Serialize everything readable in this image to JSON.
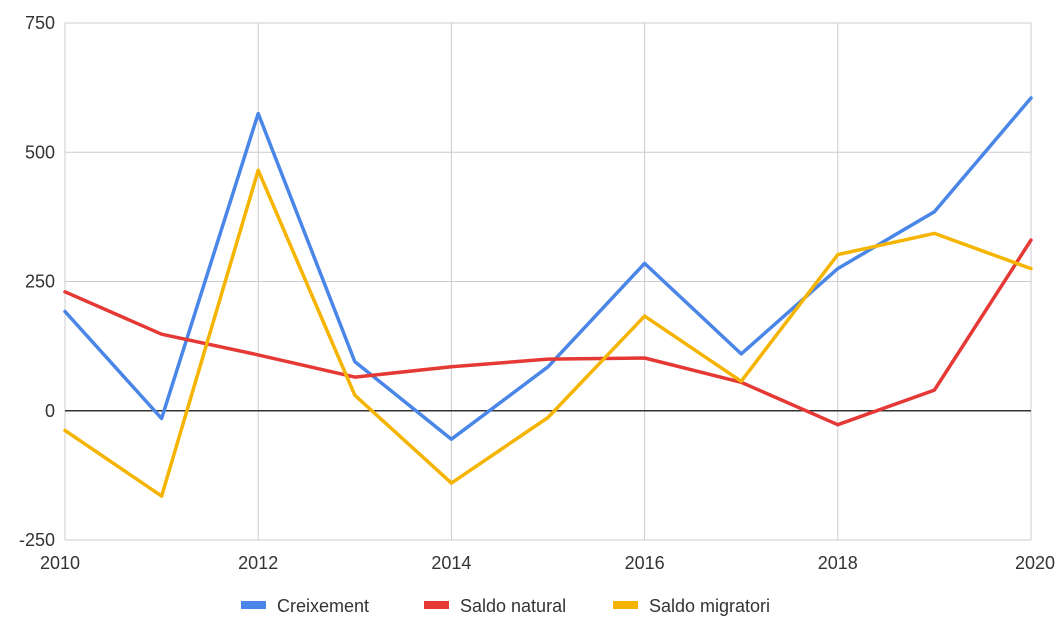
{
  "chart_data": {
    "type": "line",
    "title": "",
    "xlabel": "",
    "ylabel": "",
    "x": [
      2010,
      2011,
      2012,
      2013,
      2014,
      2015,
      2016,
      2017,
      2018,
      2019,
      2020
    ],
    "xlim": [
      2010,
      2020
    ],
    "ylim": [
      -250,
      750
    ],
    "x_ticks": [
      2010,
      2012,
      2014,
      2016,
      2018,
      2020
    ],
    "y_ticks": [
      -250,
      0,
      250,
      500,
      750
    ],
    "grid": true,
    "legend": "bottom",
    "series": [
      {
        "name": "Creixement",
        "color": "#4a86e8",
        "values": [
          192,
          -15,
          575,
          95,
          -55,
          85,
          285,
          110,
          275,
          385,
          605
        ]
      },
      {
        "name": "Saldo natural",
        "color": "#e53935",
        "values": [
          230,
          148,
          108,
          65,
          85,
          100,
          102,
          55,
          -27,
          40,
          330
        ]
      },
      {
        "name": "Saldo migratori",
        "color": "#f4b400",
        "values": [
          -38,
          -165,
          465,
          30,
          -140,
          -13,
          183,
          57,
          302,
          343,
          275
        ]
      }
    ]
  }
}
